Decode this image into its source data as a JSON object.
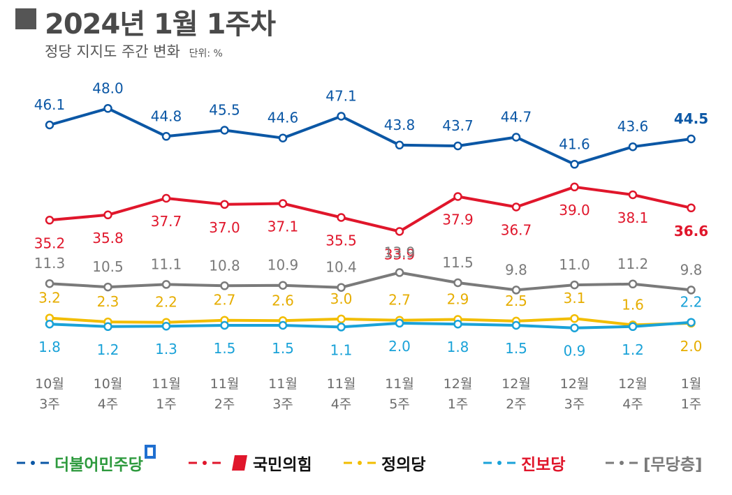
{
  "header": {
    "title": "2024년 1월 1주차",
    "subtitle": "정당 지지도 주간 변화",
    "unit": "단위: %"
  },
  "colors": {
    "democratic": "#0b57a5",
    "ppp": "#e0162b",
    "justice": "#f2bd00",
    "progressive": "#1aa2d8",
    "independent": "#7a7a7a"
  },
  "chart_data": {
    "type": "line",
    "title": "정당 지지도 주간 변화",
    "unit": "%",
    "categories": [
      [
        "10월",
        "3주"
      ],
      [
        "10월",
        "4주"
      ],
      [
        "11월",
        "1주"
      ],
      [
        "11월",
        "2주"
      ],
      [
        "11월",
        "3주"
      ],
      [
        "11월",
        "4주"
      ],
      [
        "11월",
        "5주"
      ],
      [
        "12월",
        "1주"
      ],
      [
        "12월",
        "2주"
      ],
      [
        "12월",
        "3주"
      ],
      [
        "12월",
        "4주"
      ],
      [
        "1월",
        "1주"
      ]
    ],
    "series": [
      {
        "key": "democratic",
        "name": "더불어민주당",
        "color": "#0b57a5",
        "values": [
          46.1,
          48.0,
          44.8,
          45.5,
          44.6,
          47.1,
          43.8,
          43.7,
          44.7,
          41.6,
          43.6,
          44.5
        ],
        "labels": [
          "46.1",
          "48.0",
          "44.8",
          "45.5",
          "44.6",
          "47.1",
          "43.8",
          "43.7",
          "44.7",
          "41.6",
          "43.6",
          "44.5"
        ]
      },
      {
        "key": "ppp",
        "name": "국민의힘",
        "color": "#e0162b",
        "values": [
          35.2,
          35.8,
          37.7,
          37.0,
          37.1,
          35.5,
          33.9,
          37.9,
          36.7,
          39.0,
          38.1,
          36.6
        ],
        "labels": [
          "35.2",
          "35.8",
          "37.7",
          "37.0",
          "37.1",
          "35.5",
          "33.9",
          "37.9",
          "36.7",
          "39.0",
          "38.1",
          "36.6"
        ]
      },
      {
        "key": "independent",
        "name": "[무당층]",
        "color": "#7a7a7a",
        "values": [
          11.3,
          10.5,
          11.1,
          10.8,
          10.9,
          10.4,
          13.9,
          11.5,
          9.8,
          11.0,
          11.2,
          9.8
        ],
        "labels": [
          "11.3",
          "10.5",
          "11.1",
          "10.8",
          "10.9",
          "10.4",
          "13.9",
          "11.5",
          "9.8",
          "11.0",
          "11.2",
          "9.8"
        ]
      },
      {
        "key": "justice",
        "name": "정의당",
        "color": "#f2bd00",
        "values": [
          3.2,
          2.3,
          2.2,
          2.7,
          2.6,
          3.0,
          2.7,
          2.9,
          2.5,
          3.1,
          1.6,
          2.0
        ],
        "labels": [
          "3.2",
          "2.3",
          "2.2",
          "2.7",
          "2.6",
          "3.0",
          "2.7",
          "2.9",
          "2.5",
          "3.1",
          "1.6",
          "2.0"
        ]
      },
      {
        "key": "progressive",
        "name": "진보당",
        "color": "#1aa2d8",
        "values": [
          1.8,
          1.2,
          1.3,
          1.5,
          1.5,
          1.1,
          2.0,
          1.8,
          1.5,
          0.9,
          1.2,
          2.2
        ],
        "labels": [
          "1.8",
          "1.2",
          "1.3",
          "1.5",
          "1.5",
          "1.1",
          "2.0",
          "1.8",
          "1.5",
          "0.9",
          "1.2",
          "2.2"
        ]
      }
    ]
  },
  "legend": [
    {
      "key": "democratic",
      "label": "더불어민주당",
      "color": "#0b57a5",
      "text_color": "#2e9a3e"
    },
    {
      "key": "ppp",
      "label": "국민의힘",
      "color": "#e0162b",
      "text_color": "#111111"
    },
    {
      "key": "justice",
      "label": "정의당",
      "color": "#f2bd00",
      "text_color": "#111111"
    },
    {
      "key": "progressive",
      "label": "진보당",
      "color": "#1aa2d8",
      "text_color": "#e0162b"
    },
    {
      "key": "independent",
      "label": "[무당층]",
      "color": "#7a7a7a",
      "text_color": "#7a7a7a"
    }
  ]
}
